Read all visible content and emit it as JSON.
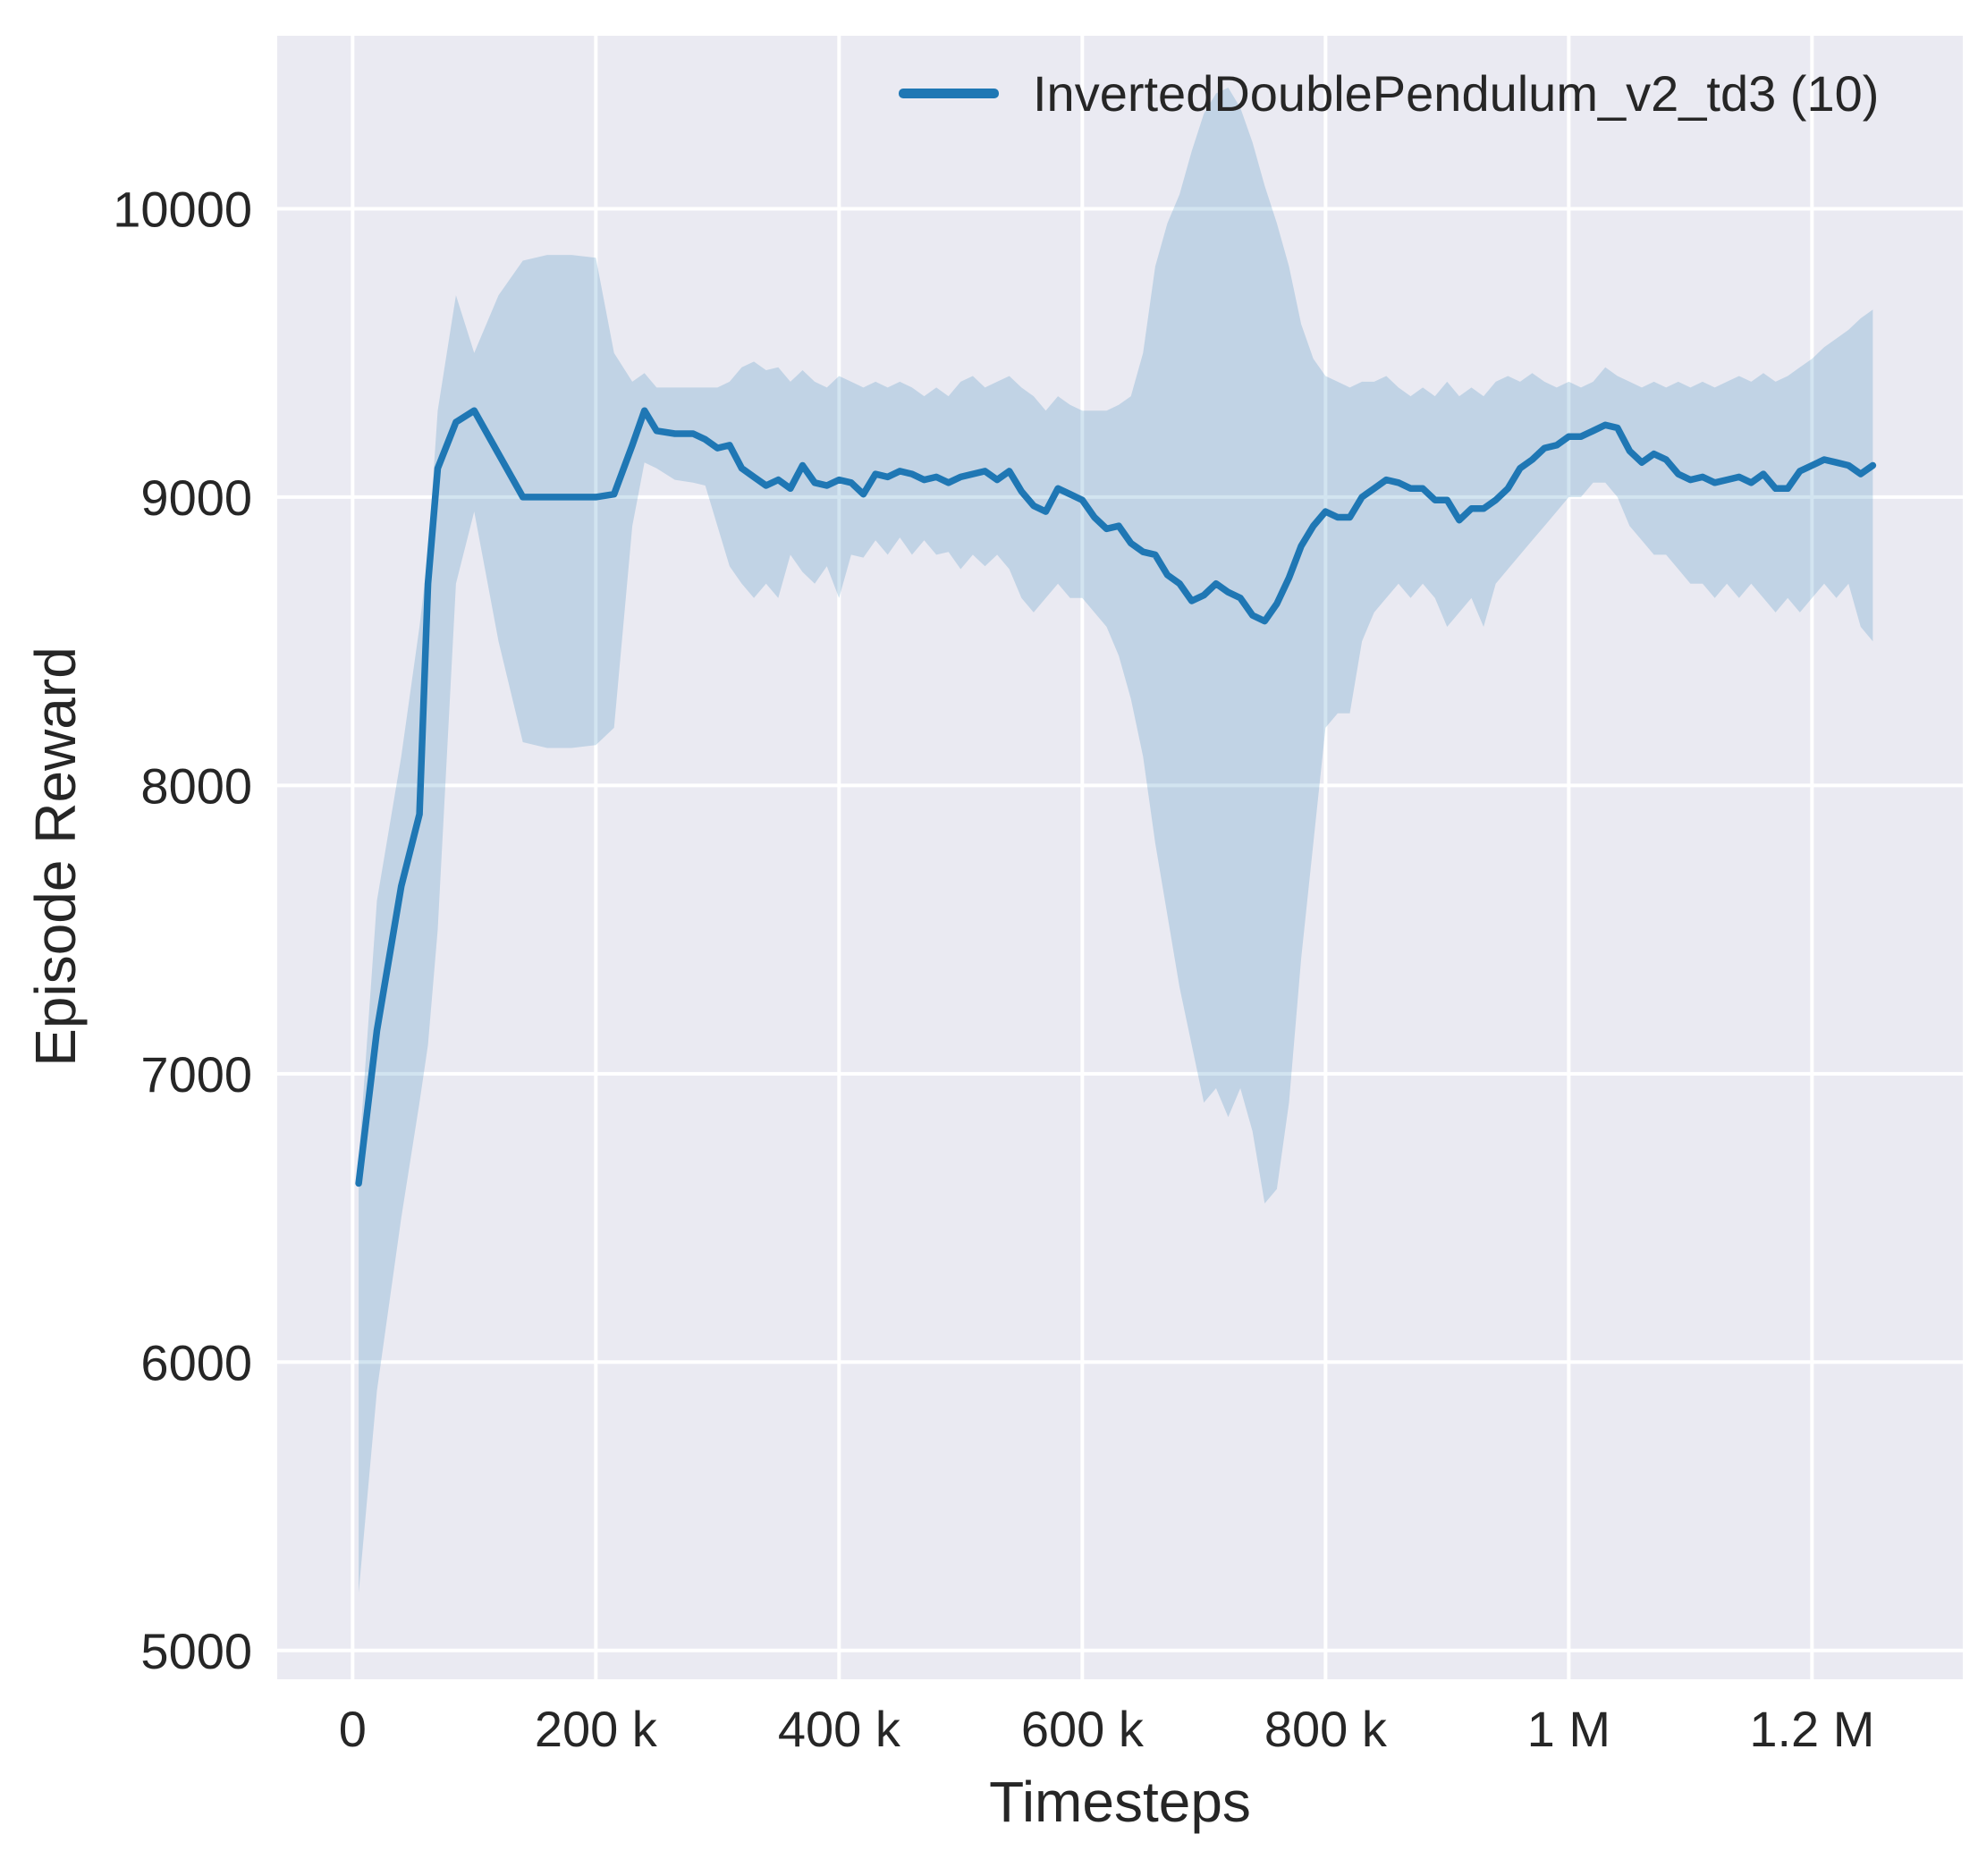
{
  "figure": {
    "background": "#ffffff",
    "plot_background": "#eaeaf2",
    "grid_color": "#ffffff",
    "line_color": "#1f77b4",
    "band_color": "#1f77b4",
    "band_opacity": 0.2,
    "text_color": "#262626"
  },
  "chart_data": {
    "type": "line",
    "title": "",
    "xlabel": "Timesteps",
    "ylabel": "Episode Reward",
    "grid": true,
    "legend_position": "upper right inside",
    "legend": [
      {
        "label": "InvertedDoublePendulum_v2_td3 (10)",
        "color": "#1f77b4"
      }
    ],
    "xlim": [
      -62000,
      1324000
    ],
    "ylim": [
      4900,
      10600
    ],
    "x_ticks": [
      {
        "value": 0,
        "label": "0"
      },
      {
        "value": 200000,
        "label": "200 k"
      },
      {
        "value": 400000,
        "label": "400 k"
      },
      {
        "value": 600000,
        "label": "600 k"
      },
      {
        "value": 800000,
        "label": "800 k"
      },
      {
        "value": 1000000,
        "label": "1 M"
      },
      {
        "value": 1200000,
        "label": "1.2 M"
      }
    ],
    "y_ticks": [
      {
        "value": 5000,
        "label": "5000"
      },
      {
        "value": 6000,
        "label": "6000"
      },
      {
        "value": 7000,
        "label": "7000"
      },
      {
        "value": 8000,
        "label": "8000"
      },
      {
        "value": 9000,
        "label": "9000"
      },
      {
        "value": 10000,
        "label": "10000"
      }
    ],
    "series": [
      {
        "name": "InvertedDoublePendulum_v2_td3 (10)",
        "x": [
          5000,
          20000,
          40000,
          55000,
          62000,
          70000,
          85000,
          100000,
          120000,
          140000,
          160000,
          180000,
          200000,
          215000,
          230000,
          240000,
          250000,
          265000,
          280000,
          290000,
          300000,
          310000,
          320000,
          330000,
          340000,
          350000,
          360000,
          370000,
          380000,
          390000,
          400000,
          410000,
          420000,
          430000,
          440000,
          450000,
          460000,
          470000,
          480000,
          490000,
          500000,
          510000,
          520000,
          530000,
          540000,
          550000,
          560000,
          570000,
          580000,
          590000,
          600000,
          610000,
          620000,
          630000,
          640000,
          650000,
          660000,
          670000,
          680000,
          690000,
          700000,
          710000,
          720000,
          730000,
          740000,
          750000,
          760000,
          770000,
          780000,
          790000,
          800000,
          810000,
          820000,
          830000,
          840000,
          850000,
          860000,
          870000,
          880000,
          890000,
          900000,
          910000,
          920000,
          930000,
          940000,
          950000,
          960000,
          970000,
          980000,
          990000,
          1000000,
          1010000,
          1020000,
          1030000,
          1040000,
          1050000,
          1060000,
          1070000,
          1080000,
          1090000,
          1100000,
          1110000,
          1120000,
          1130000,
          1140000,
          1150000,
          1160000,
          1170000,
          1180000,
          1190000,
          1200000,
          1210000,
          1220000,
          1230000,
          1240000,
          1250000
        ],
        "mean": [
          6620,
          7150,
          7650,
          7900,
          8700,
          9100,
          9260,
          9300,
          9150,
          9000,
          9000,
          9000,
          9000,
          9010,
          9180,
          9300,
          9230,
          9220,
          9220,
          9200,
          9170,
          9180,
          9100,
          9070,
          9040,
          9060,
          9030,
          9110,
          9050,
          9040,
          9060,
          9050,
          9010,
          9080,
          9070,
          9090,
          9080,
          9060,
          9070,
          9050,
          9070,
          9080,
          9090,
          9060,
          9090,
          9020,
          8970,
          8950,
          9030,
          9010,
          8990,
          8930,
          8890,
          8900,
          8840,
          8810,
          8800,
          8730,
          8700,
          8640,
          8660,
          8700,
          8670,
          8650,
          8590,
          8570,
          8630,
          8720,
          8830,
          8900,
          8950,
          8930,
          8930,
          9000,
          9030,
          9060,
          9050,
          9030,
          9030,
          8990,
          8990,
          8920,
          8960,
          8960,
          8990,
          9030,
          9100,
          9130,
          9170,
          9180,
          9210,
          9210,
          9230,
          9250,
          9240,
          9160,
          9120,
          9150,
          9130,
          9080,
          9060,
          9070,
          9050,
          9060,
          9070,
          9050,
          9080,
          9030,
          9030,
          9090,
          9110,
          9130,
          9120,
          9110,
          9080,
          9110
        ],
        "band_lower": [
          5200,
          5900,
          6500,
          6900,
          7100,
          7500,
          8700,
          8950,
          8500,
          8150,
          8130,
          8130,
          8140,
          8200,
          8900,
          9120,
          9100,
          9060,
          9050,
          9040,
          8900,
          8760,
          8700,
          8650,
          8700,
          8650,
          8800,
          8740,
          8700,
          8760,
          8650,
          8800,
          8790,
          8850,
          8800,
          8860,
          8800,
          8850,
          8800,
          8810,
          8750,
          8800,
          8760,
          8800,
          8750,
          8650,
          8600,
          8650,
          8700,
          8650,
          8650,
          8600,
          8550,
          8450,
          8300,
          8100,
          7800,
          7550,
          7300,
          7100,
          6900,
          6950,
          6850,
          6950,
          6800,
          6550,
          6600,
          6900,
          7400,
          7800,
          8200,
          8250,
          8250,
          8500,
          8600,
          8650,
          8700,
          8650,
          8700,
          8650,
          8550,
          8600,
          8650,
          8550,
          8700,
          8750,
          8800,
          8850,
          8900,
          8950,
          9000,
          9000,
          9050,
          9050,
          9000,
          8900,
          8850,
          8800,
          8800,
          8750,
          8700,
          8700,
          8650,
          8700,
          8650,
          8700,
          8650,
          8600,
          8650,
          8600,
          8650,
          8700,
          8650,
          8700,
          8550,
          8500
        ],
        "band_upper": [
          6700,
          7600,
          8100,
          8550,
          8800,
          9300,
          9700,
          9500,
          9700,
          9820,
          9840,
          9840,
          9830,
          9500,
          9400,
          9430,
          9380,
          9380,
          9380,
          9380,
          9380,
          9400,
          9450,
          9470,
          9440,
          9450,
          9400,
          9440,
          9400,
          9380,
          9420,
          9400,
          9380,
          9400,
          9380,
          9400,
          9380,
          9350,
          9380,
          9350,
          9400,
          9420,
          9380,
          9400,
          9420,
          9380,
          9350,
          9300,
          9350,
          9320,
          9300,
          9300,
          9300,
          9320,
          9350,
          9500,
          9800,
          9950,
          10050,
          10200,
          10330,
          10400,
          10420,
          10350,
          10230,
          10080,
          9950,
          9800,
          9600,
          9480,
          9420,
          9400,
          9380,
          9400,
          9400,
          9420,
          9380,
          9350,
          9380,
          9350,
          9400,
          9350,
          9380,
          9350,
          9400,
          9420,
          9400,
          9430,
          9400,
          9380,
          9400,
          9380,
          9400,
          9450,
          9420,
          9400,
          9380,
          9400,
          9380,
          9400,
          9380,
          9400,
          9380,
          9400,
          9420,
          9400,
          9430,
          9400,
          9420,
          9450,
          9480,
          9520,
          9550,
          9580,
          9620,
          9650
        ]
      }
    ]
  }
}
